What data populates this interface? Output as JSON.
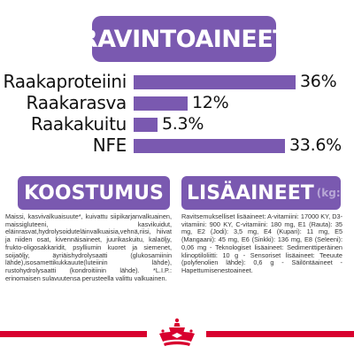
{
  "title": "RAVINTOAINEET",
  "chart_data": {
    "type": "bar",
    "categories": [
      "Raakaproteiini",
      "Raakarasva",
      "Raakakuitu",
      "NFE"
    ],
    "values": [
      36,
      12,
      5.3,
      33.6
    ],
    "value_labels": [
      "36%",
      "12%",
      "5.3%",
      "33.6%"
    ],
    "xlim": [
      0,
      36
    ],
    "bar_color": "#7a59b0"
  },
  "composition": {
    "title": "KOOSTUMUS",
    "text": "Maissi, kasvivalkuaisuute*, kuivattu siipikarjanvalkuainen, maissigluteeni, kasvikuidut, eläinrasvat,hydrolysoiduteläinvalkuaisia,vehnä,riisi, hiivat ja niiden osat, kivennäisaineet, juurikaskuitu, kalaöljy, frukto-oligosakkaridit, psylliumin kuoret ja siemenet, soijaöljy, äyriäishydrolysaatti (glukosamiinin lähde),isosamettikukkauute(luteiinin lähde), rustohydrolysaatti (kondroitiinin lähde). *L.I.P.: erinomaisen sulavuutensa perusteella valittu valkuainen."
  },
  "additives": {
    "title": "LISÄAINEET",
    "title_suffix": "(kg:ssa)",
    "text": "Ravitsemukselliset lisäaineet: A-vitamiini: 17000 KY, D3-vitamiini: 900 KY, C-vitamiini: 180 mg, E1 (Rauta): 35 mg, E2 (Jodi): 3,5 mg, E4 (Kupari): 11 mg, E5 (Mangaani): 45 mg, E6 (Sinkki): 136 mg, E8 (Seleeni): 0,06 mg - Teknologiset lisäaineet: Sedimenttiperäinen klinoptiloliitti: 10 g - Sensoriset lisäaineet: Teeuute (polyfenolien lähde): 0,6 g - Säilöntäaineet - Hapettumisenestoaineet."
  },
  "colors": {
    "accent": "#7a59b0",
    "brand_red": "#d8002e"
  }
}
